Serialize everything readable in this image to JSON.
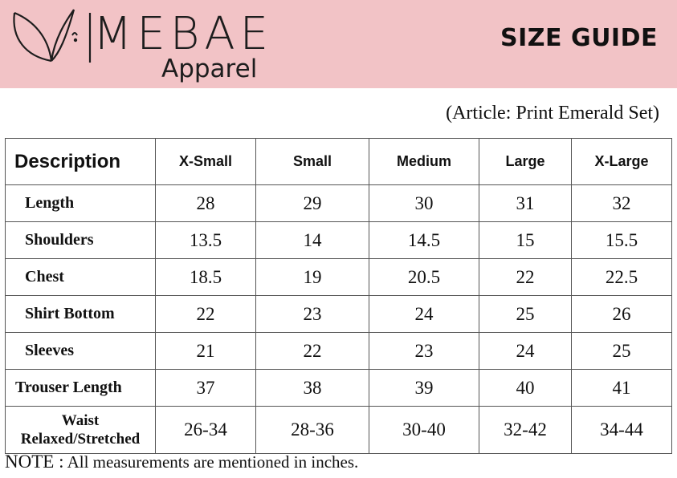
{
  "brand": {
    "name": "MEBAE",
    "sub": "Apparel"
  },
  "title": "SIZE GUIDE",
  "article": "(Article: Print Emerald Set)",
  "colors": {
    "banner": "#f2c3c6",
    "text": "#111111"
  },
  "table": {
    "headers": [
      "Description",
      "X-Small",
      "Small",
      "Medium",
      "Large",
      "X-Large"
    ],
    "rows": [
      {
        "label": "Length",
        "values": [
          "28",
          "29",
          "30",
          "31",
          "32"
        ]
      },
      {
        "label": "Shoulders",
        "values": [
          "13.5",
          "14",
          "14.5",
          "15",
          "15.5"
        ]
      },
      {
        "label": "Chest",
        "values": [
          "18.5",
          "19",
          "20.5",
          "22",
          "22.5"
        ]
      },
      {
        "label": "Shirt Bottom",
        "values": [
          "22",
          "23",
          "24",
          "25",
          "26"
        ]
      },
      {
        "label": "Sleeves",
        "values": [
          "21",
          "22",
          "23",
          "24",
          "25"
        ]
      },
      {
        "label": "Trouser Length",
        "values": [
          "37",
          "38",
          "39",
          "40",
          "41"
        ]
      },
      {
        "label_line1": "Waist",
        "label_line2": "Relaxed/Stretched",
        "values": [
          "26-34",
          "28-36",
          "30-40",
          "32-42",
          "34-44"
        ]
      }
    ]
  },
  "note": {
    "head": "NOTE :",
    "text": "All measurements are mentioned in inches."
  }
}
